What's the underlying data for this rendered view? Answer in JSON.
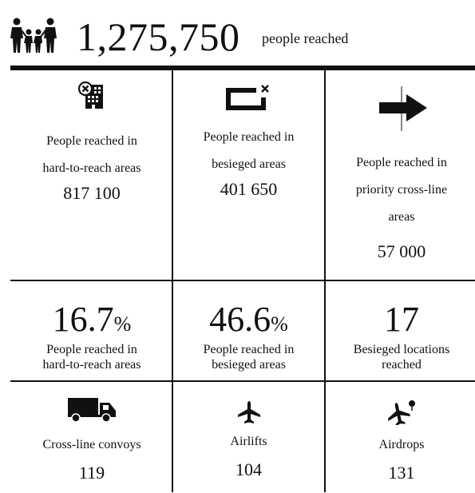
{
  "header": {
    "total": "1,275,750",
    "label": "people reached",
    "icon": "family-icon"
  },
  "row1": [
    {
      "icon": "building-x-icon",
      "label_line1": "People reached in",
      "label_line2": "hard-to-reach areas",
      "value": "817 100"
    },
    {
      "icon": "besieged-box-icon",
      "label_line1": "People reached in",
      "label_line2": "besieged areas",
      "value": "401 650"
    },
    {
      "icon": "arrow-right-icon",
      "label_line1": "People reached in",
      "label_line2": "priority cross-line",
      "label_line3": "areas",
      "value": "57 000"
    }
  ],
  "row2": [
    {
      "value": "16.7",
      "unit": "%",
      "label_line1": "People reached in",
      "label_line2": "hard-to-reach areas"
    },
    {
      "value": "46.6",
      "unit": "%",
      "label_line1": "People reached in",
      "label_line2": "besieged areas"
    },
    {
      "value": "17",
      "unit": "",
      "label_line1": "Besieged locations",
      "label_line2": "reached"
    }
  ],
  "row3": [
    {
      "icon": "truck-icon",
      "label": "Cross-line convoys",
      "value": "119"
    },
    {
      "icon": "airplane-icon",
      "label": "Airlifts",
      "value": "104"
    },
    {
      "icon": "airdrop-plane-icon",
      "label": "Airdrops",
      "value": "131"
    }
  ]
}
